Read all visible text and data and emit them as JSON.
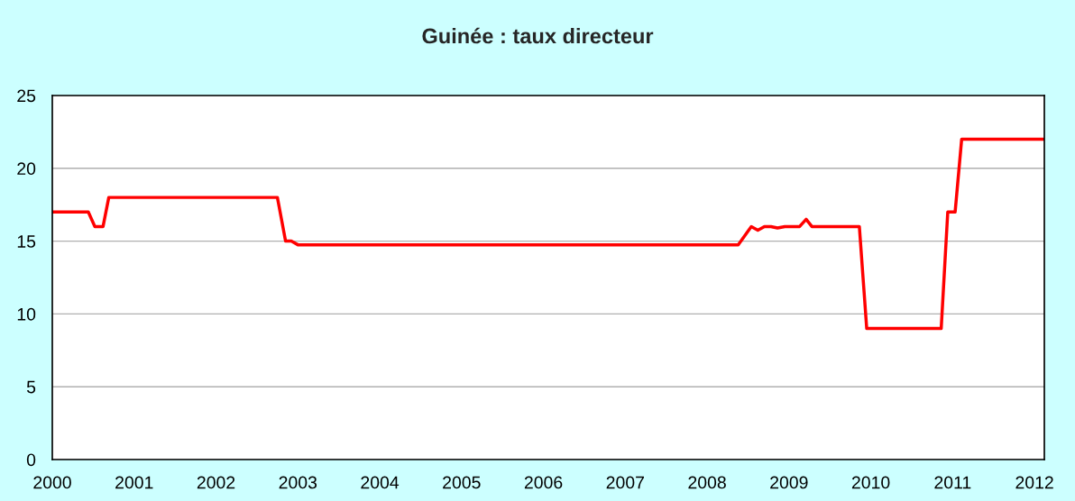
{
  "chart_data": {
    "type": "line",
    "title": "Guinée : taux directeur",
    "x": [
      2000,
      2000.44,
      2000.52,
      2000.62,
      2000.69,
      2002.75,
      2002.85,
      2002.92,
      2003.0,
      2008.38,
      2008.54,
      2008.62,
      2008.7,
      2008.78,
      2008.86,
      2008.95,
      2009.13,
      2009.21,
      2009.28,
      2009.86,
      2009.95,
      2010.86,
      2010.94,
      2011.03,
      2011.11,
      2012.11
    ],
    "series": [
      {
        "color": "#ff0000",
        "values": [
          17,
          17,
          16,
          16,
          18,
          18,
          15,
          15,
          14.75,
          14.75,
          16,
          15.75,
          16,
          16,
          15.9,
          16,
          16,
          16.5,
          16,
          16,
          9,
          9,
          17,
          17,
          22,
          22
        ]
      }
    ],
    "xlim": [
      2000,
      2012.12
    ],
    "xticks": [
      2000,
      2001,
      2002,
      2003,
      2004,
      2005,
      2006,
      2007,
      2008,
      2009,
      2010,
      2011,
      2012
    ],
    "ylim": [
      0,
      25
    ],
    "yticks": [
      0,
      5,
      10,
      15,
      20,
      25
    ],
    "grid": "y",
    "marker": "none",
    "line_style": "solid"
  }
}
